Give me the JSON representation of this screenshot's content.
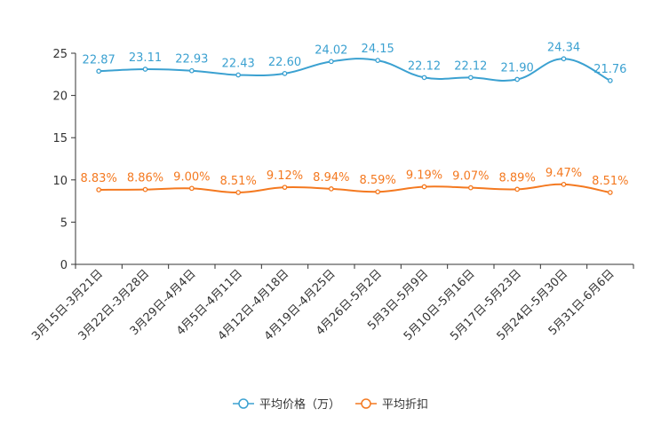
{
  "chart_data": {
    "type": "line",
    "title": "",
    "xlabel": "",
    "ylabel": "",
    "ylim": [
      0,
      25
    ],
    "yticks": [
      0,
      5,
      10,
      15,
      20,
      25
    ],
    "grid": false,
    "legend_position": "bottom",
    "categories": [
      "3月15日-3月21日",
      "3月22日-3月28日",
      "3月29日-4月4日",
      "4月5日-4月11日",
      "4月12日-4月18日",
      "4月19日-4月25日",
      "4月26日-5月2日",
      "5月3日-5月9日",
      "5月10日-5月16日",
      "5月17日-5月23日",
      "5月24日-5月30日",
      "5月31日-6月6日"
    ],
    "series": [
      {
        "name": "平均价格（万）",
        "color": "#3ba1d1",
        "values": [
          22.87,
          23.11,
          22.93,
          22.43,
          22.6,
          24.02,
          24.15,
          22.12,
          22.12,
          21.9,
          24.34,
          21.76
        ],
        "labels": [
          "22.87",
          "23.11",
          "22.93",
          "22.43",
          "22.60",
          "24.02",
          "24.15",
          "22.12",
          "22.12",
          "21.90",
          "24.34",
          "21.76"
        ]
      },
      {
        "name": "平均折扣",
        "color": "#f47920",
        "values": [
          8.83,
          8.86,
          9.0,
          8.51,
          9.12,
          8.94,
          8.59,
          9.19,
          9.07,
          8.89,
          9.47,
          8.51
        ],
        "labels": [
          "8.83%",
          "8.86%",
          "9.00%",
          "8.51%",
          "9.12%",
          "8.94%",
          "8.59%",
          "9.19%",
          "9.07%",
          "8.89%",
          "9.47%",
          "8.51%"
        ]
      }
    ]
  }
}
